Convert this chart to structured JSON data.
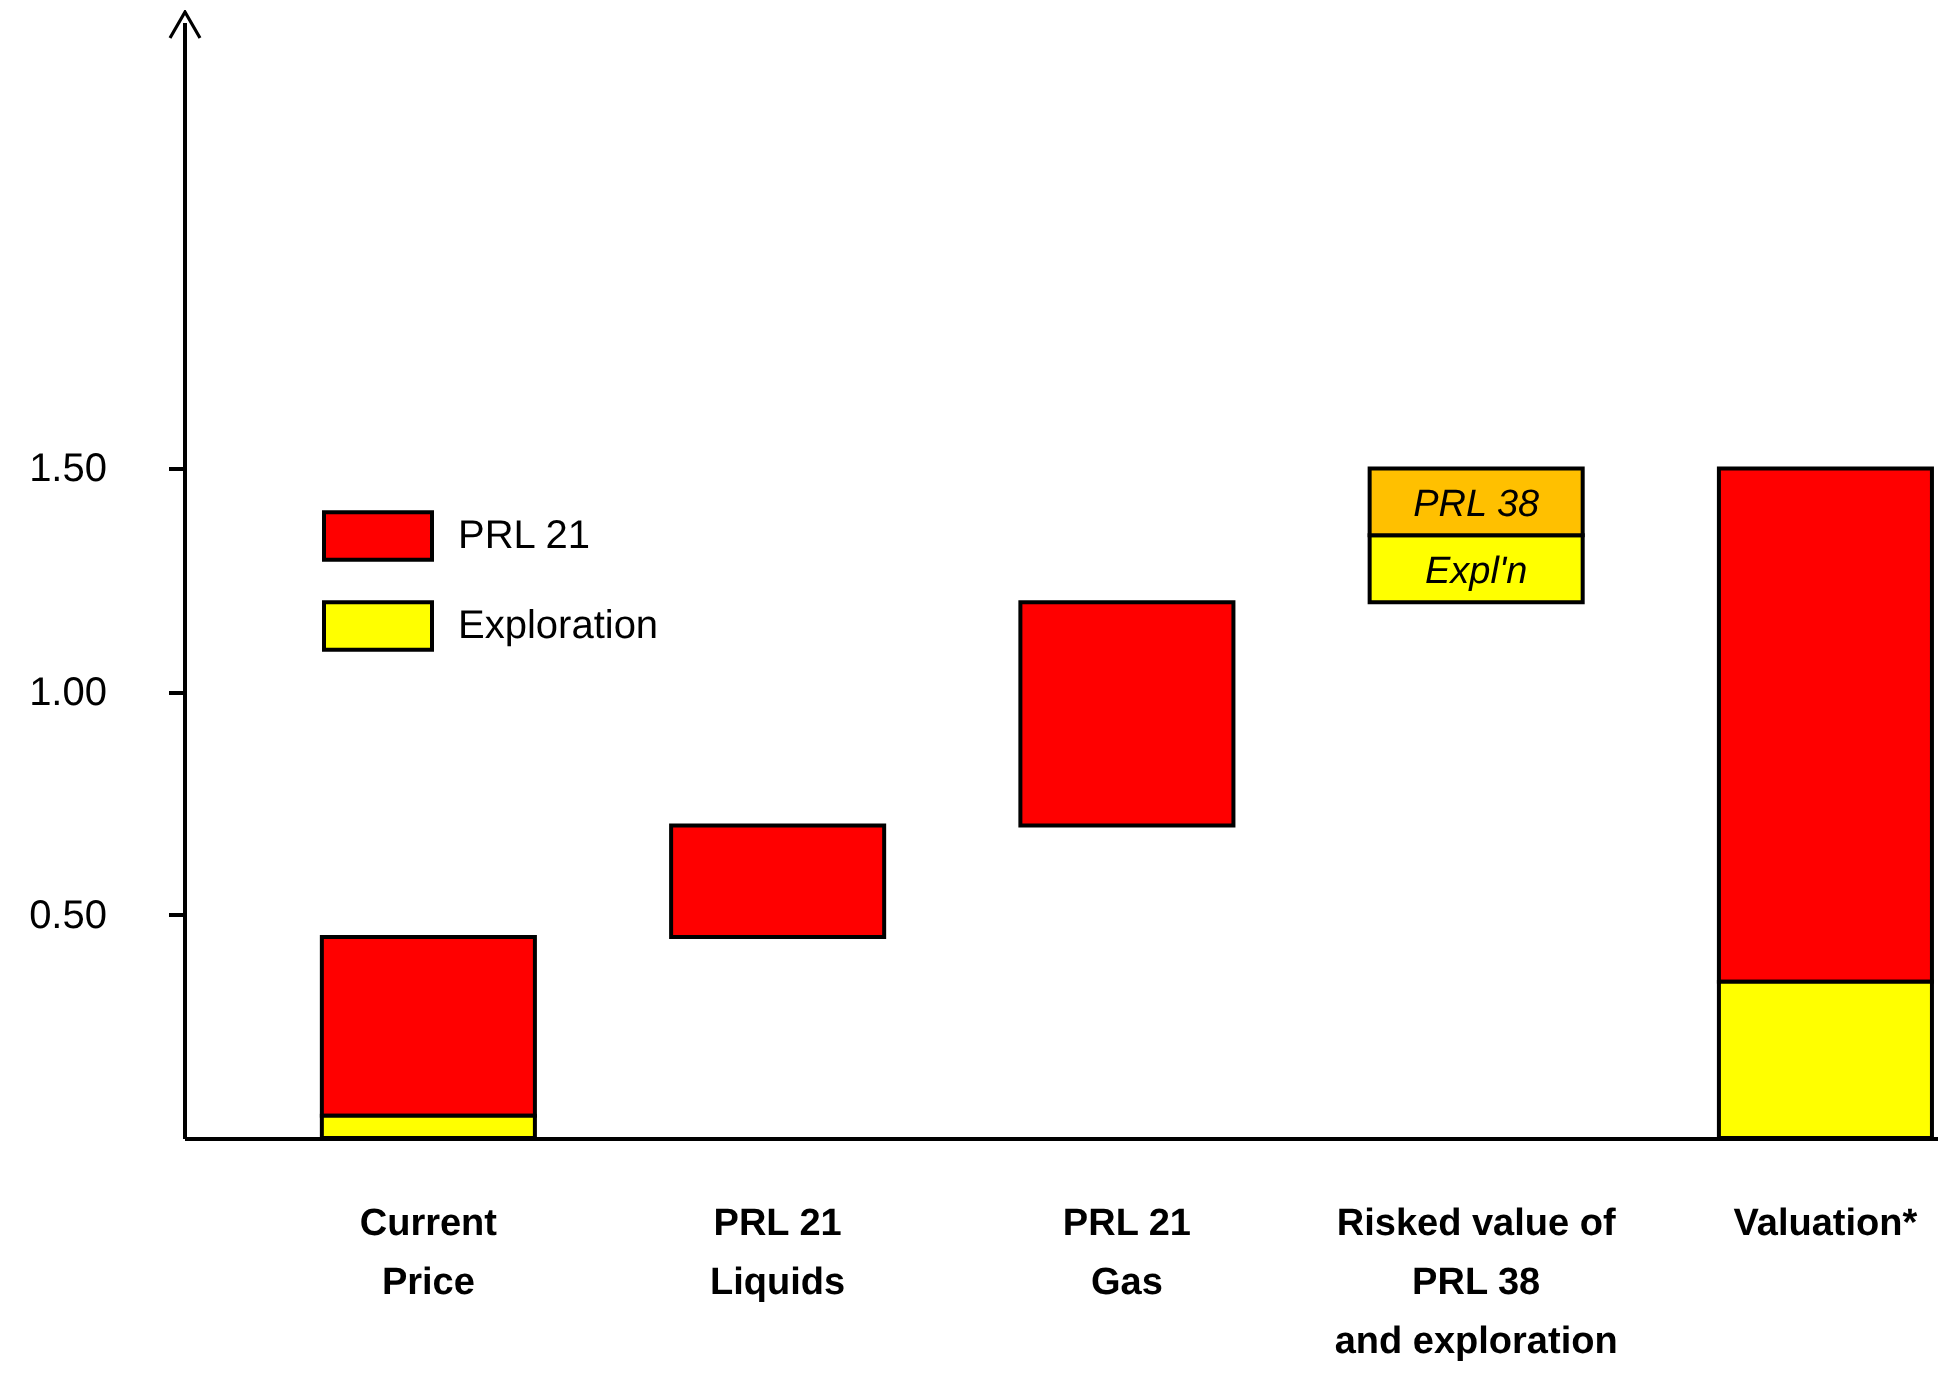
{
  "chart_data": {
    "type": "bar",
    "categories": [
      "Current\nPrice",
      "PRL 21\nLiquids",
      "PRL 21\nGas",
      "Risked value of\nPRL 38\nand exploration",
      "Valuation*"
    ],
    "series": [
      {
        "name": "PRL 21",
        "color": "#ff0000",
        "values": [
          0.4,
          0.25,
          0.5,
          null,
          1.15
        ],
        "base": [
          0.05,
          0.45,
          0.7,
          null,
          0.35
        ]
      },
      {
        "name": "Exploration",
        "color": "#ffff00",
        "values": [
          0.05,
          null,
          null,
          0.15,
          0.35
        ],
        "base": [
          0,
          null,
          null,
          1.2,
          0
        ]
      },
      {
        "color": "#ffc000",
        "values": [
          null,
          null,
          null,
          0.15,
          null
        ],
        "base": [
          null,
          null,
          null,
          1.35,
          null
        ]
      }
    ],
    "ylim": [
      0,
      2.5
    ],
    "yticks": [
      {
        "value": 0.5,
        "label": "0.50"
      },
      {
        "value": 1,
        "label": "1.00"
      },
      {
        "value": 1.5,
        "label": "1.50"
      }
    ],
    "legend": "left",
    "annotations": [
      {
        "text": "PRL 38",
        "x": "Risked value of\nPRL 38\nand exploration",
        "y": 1.5
      },
      {
        "text": "Expl'n",
        "x": "Risked value of\nPRL 38\nand exploration",
        "y": 1.35
      }
    ]
  }
}
